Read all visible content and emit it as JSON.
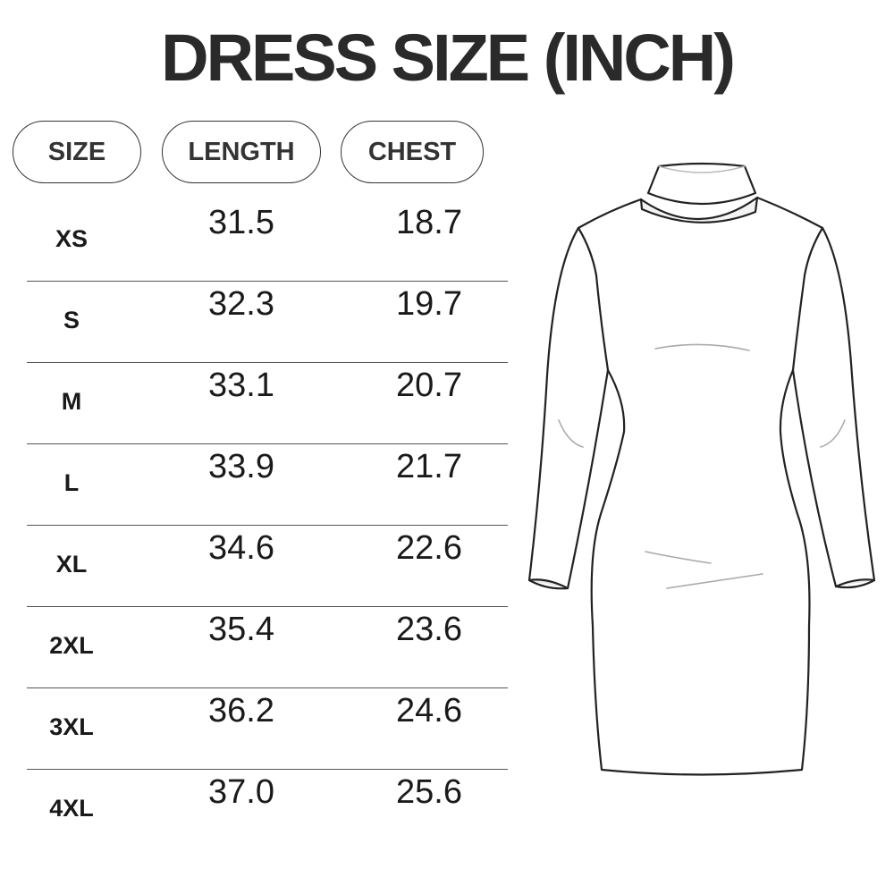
{
  "title": "DRESS SIZE (INCH)",
  "headers": {
    "size": "SIZE",
    "length": "LENGTH",
    "chest": "CHEST"
  },
  "rows": [
    {
      "size": "XS",
      "length": "31.5",
      "chest": "18.7"
    },
    {
      "size": "S",
      "length": "32.3",
      "chest": "19.7"
    },
    {
      "size": "M",
      "length": "33.1",
      "chest": "20.7"
    },
    {
      "size": "L",
      "length": "33.9",
      "chest": "21.7"
    },
    {
      "size": "XL",
      "length": "34.6",
      "chest": "22.6"
    },
    {
      "size": "2XL",
      "length": "35.4",
      "chest": "23.6"
    },
    {
      "size": "3XL",
      "length": "36.2",
      "chest": "24.6"
    },
    {
      "size": "4XL",
      "length": "37.0",
      "chest": "25.6"
    }
  ],
  "illustration": "turtleneck-long-sleeve-bodycon-dress"
}
